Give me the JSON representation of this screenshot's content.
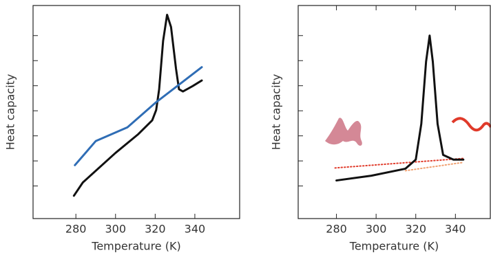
{
  "chart_data": [
    {
      "type": "line",
      "xlabel": "Temperature (K)",
      "ylabel": "Heat capacity",
      "xlim": [
        258.4,
        362.6
      ],
      "xticks": [
        280,
        300,
        320,
        340
      ],
      "ylim": [
        -0.3,
        8.2
      ],
      "yticks": [
        1,
        2,
        3,
        4,
        5,
        6,
        7
      ],
      "top_ticks": false,
      "series": [
        {
          "color": "#111111",
          "style": "solid",
          "x": [
            279,
            283.5,
            300,
            311.5,
            318.5,
            320.5,
            322,
            324,
            326,
            328,
            330.5,
            332,
            334,
            339,
            343.5
          ],
          "values": [
            0.61,
            1.14,
            2.32,
            3.07,
            3.62,
            4.03,
            4.86,
            6.79,
            7.83,
            7.34,
            5.68,
            4.86,
            4.77,
            4.99,
            5.21
          ]
        },
        {
          "color": "#2f6db5",
          "style": "solid",
          "x": [
            279.5,
            290,
            306,
            320,
            343.5
          ],
          "values": [
            1.83,
            2.79,
            3.34,
            4.31,
            5.74
          ]
        }
      ]
    },
    {
      "type": "line",
      "xlabel": "Temperature (K)",
      "ylabel": "Heat capacity",
      "xlim": [
        260.7,
        357.6
      ],
      "xticks": [
        280,
        300,
        320,
        340
      ],
      "ylim": [
        -0.3,
        8.2
      ],
      "yticks": [
        1,
        2,
        3,
        4,
        5,
        6,
        7
      ],
      "top_ticks": true,
      "series": [
        {
          "color": "#e03a2a",
          "style": "dotted",
          "x": [
            279.3,
            344
          ],
          "values": [
            1.72,
            2.1
          ]
        },
        {
          "color": "#f0a070",
          "style": "dotted",
          "x": [
            314.8,
            344
          ],
          "values": [
            1.61,
            1.94
          ]
        },
        {
          "color": "#111111",
          "style": "solid",
          "x": [
            280,
            297.6,
            314.8,
            320,
            322.8,
            325.2,
            327,
            328.6,
            331,
            333.8,
            339,
            344
          ],
          "values": [
            1.22,
            1.41,
            1.69,
            2.05,
            3.48,
            5.96,
            7.0,
            5.96,
            3.48,
            2.24,
            2.05,
            2.05
          ]
        }
      ]
    }
  ]
}
